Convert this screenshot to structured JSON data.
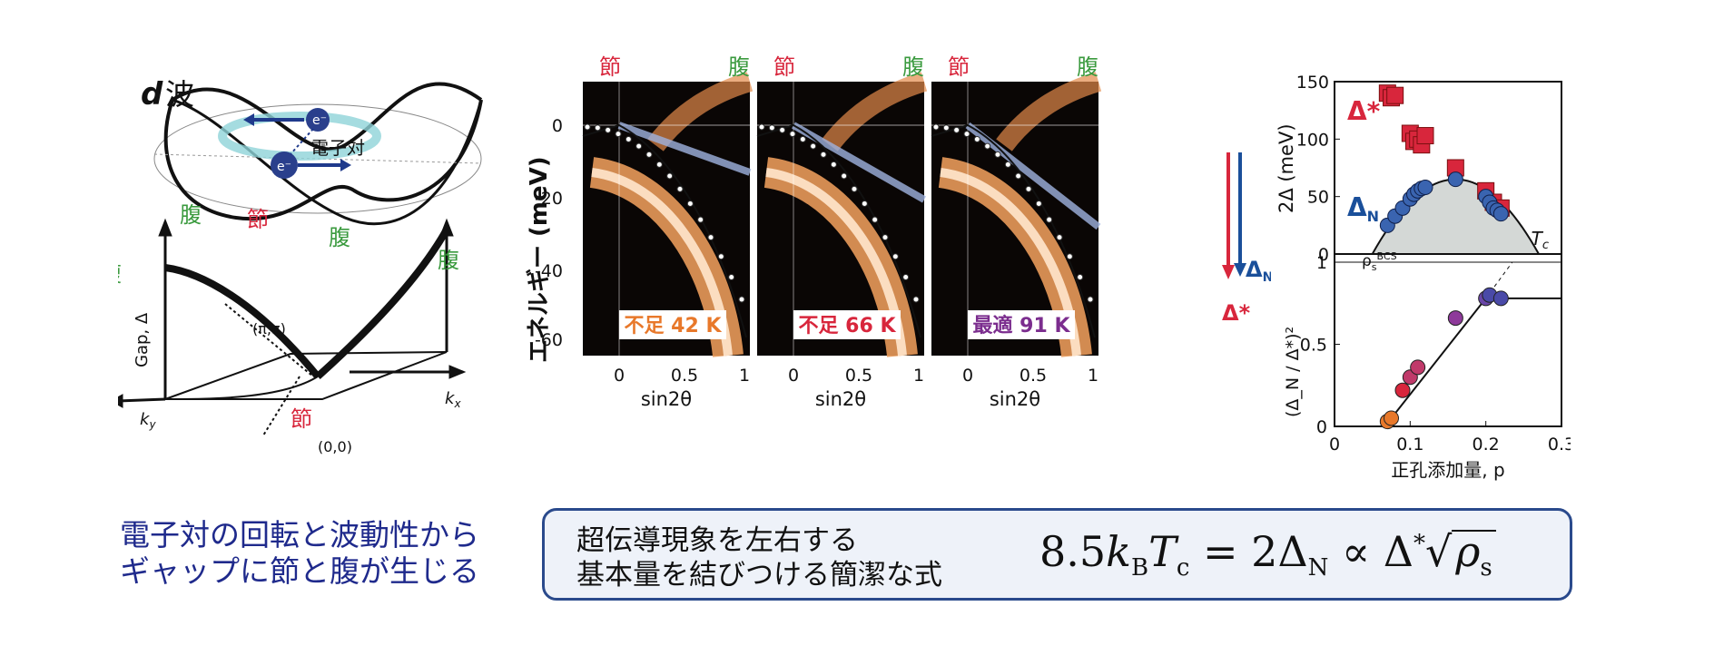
{
  "colors": {
    "red": "#d8263c",
    "green": "#3a9a3e",
    "blue": "#1a4f9a",
    "orange": "#e8782a",
    "purple": "#7b2d8e",
    "navy": "#1f2a8c"
  },
  "dwave": {
    "title_d": "d",
    "title_wave": "波",
    "pair_label": "電子対",
    "electron": "e⁻",
    "antinode": "腹",
    "node": "節",
    "gap_axis": "Gap, Δ",
    "pi_pi": "(π,π)",
    "origin": "(0,0)",
    "kx": "k",
    "kx_sub": "x",
    "ky": "k",
    "ky_sub": "y"
  },
  "arpes": {
    "ylabel": "エネルギー (meV)",
    "yticks": [
      "0",
      "-20",
      "-40",
      "-60"
    ],
    "xlabel": "sin2θ",
    "node": "節",
    "antinode": "腹",
    "panels": [
      {
        "label_prefix": "不足",
        "label_temp": "42 K",
        "color": "#e8782a",
        "xticks": [
          "0",
          "0.5",
          "1"
        ]
      },
      {
        "label_prefix": "不足",
        "label_temp": "66 K",
        "color": "#d8263c",
        "xticks": [
          "0",
          "0.5",
          "1"
        ]
      },
      {
        "label_prefix": "最適",
        "label_temp": "91 K",
        "color": "#7b2d8e",
        "xticks": [
          "0",
          "0.5",
          "1"
        ]
      }
    ],
    "delta_n": "Δ",
    "delta_n_sub": "N",
    "delta_star": "Δ*"
  },
  "chart_data": [
    {
      "type": "scatter",
      "ylabel": "2Δ (meV)",
      "yticks": [
        "0",
        "50",
        "100",
        "150"
      ],
      "ylim": [
        0,
        150
      ],
      "xlim": [
        0,
        0.3
      ],
      "series": [
        {
          "name": "Δ*",
          "marker": "square",
          "color": "#d8263c",
          "points": [
            [
              0.07,
              140
            ],
            [
              0.075,
              136
            ],
            [
              0.08,
              138
            ],
            [
              0.1,
              105
            ],
            [
              0.105,
              98
            ],
            [
              0.11,
              100
            ],
            [
              0.115,
              95
            ],
            [
              0.12,
              103
            ],
            [
              0.16,
              75
            ],
            [
              0.2,
              55
            ],
            [
              0.21,
              45
            ],
            [
              0.22,
              40
            ]
          ]
        },
        {
          "name": "Δ",
          "name_sub": "N",
          "marker": "circle",
          "color": "#3a64b0",
          "points": [
            [
              0.07,
              25
            ],
            [
              0.08,
              33
            ],
            [
              0.09,
              40
            ],
            [
              0.1,
              48
            ],
            [
              0.105,
              52
            ],
            [
              0.11,
              55
            ],
            [
              0.115,
              57
            ],
            [
              0.12,
              58
            ],
            [
              0.16,
              65
            ],
            [
              0.2,
              50
            ],
            [
              0.205,
              45
            ],
            [
              0.21,
              40
            ],
            [
              0.215,
              38
            ],
            [
              0.22,
              35
            ]
          ]
        }
      ],
      "dome_label": "T",
      "dome_label_sub": "c"
    },
    {
      "type": "scatter",
      "ylabel": "(Δ_N / Δ*)²",
      "xlabel": "正孔添加量, p",
      "xticks": [
        "0",
        "0.1",
        "0.2",
        "0.3"
      ],
      "yticks": [
        "0",
        "0.5",
        "1"
      ],
      "ylim": [
        0,
        1.05
      ],
      "xlim": [
        0,
        0.3
      ],
      "rho_label": "ρ",
      "rho_sub": "s",
      "rho_sup": "BCS",
      "points": [
        [
          0.07,
          0.03,
          "#e8782a"
        ],
        [
          0.075,
          0.05,
          "#e8782a"
        ],
        [
          0.09,
          0.22,
          "#d8263c"
        ],
        [
          0.1,
          0.3,
          "#c03a6a"
        ],
        [
          0.11,
          0.36,
          "#c03a6a"
        ],
        [
          0.16,
          0.66,
          "#8e3a9a"
        ],
        [
          0.2,
          0.78,
          "#6a46a8"
        ],
        [
          0.205,
          0.8,
          "#4a4aa8"
        ],
        [
          0.22,
          0.78,
          "#4a4aa8"
        ]
      ]
    }
  ],
  "caption": {
    "line1": "電子対の回転と波動性から",
    "line2": "ギャップに節と腹が生じる"
  },
  "summary": {
    "line1": "超伝導現象を左右する",
    "line2": "基本量を結びつける簡潔な式",
    "eq_a": "8.5",
    "eq_k": "k",
    "eq_k_sub": "B",
    "eq_t": "T",
    "eq_t_sub": "c",
    "eq_eq": " = 2Δ",
    "eq_d_sub": "N",
    "eq_prop": " ∝ Δ",
    "eq_star": "*",
    "eq_rho": "ρ",
    "eq_rho_sub": "s"
  }
}
